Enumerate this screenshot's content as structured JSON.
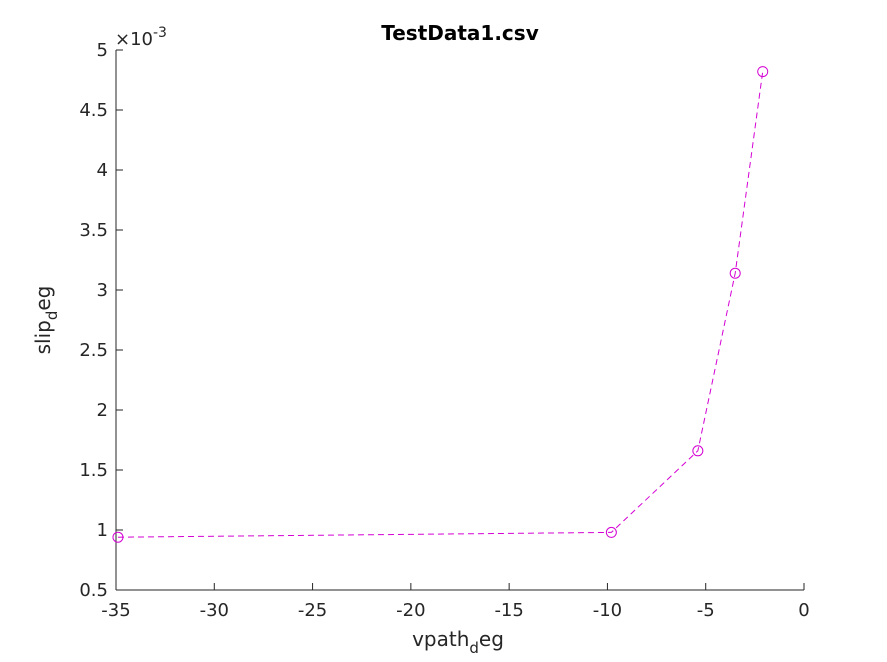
{
  "chart_data": {
    "type": "line",
    "title": "TestData1.csv",
    "xlabel": {
      "main": "vpath",
      "sub": "d",
      "tail": "eg"
    },
    "ylabel": {
      "main": "slip",
      "sub": "d",
      "tail": "eg"
    },
    "xlim": [
      -35,
      0
    ],
    "ylim": [
      0.5,
      5
    ],
    "x_ticks": [
      -35,
      -30,
      -25,
      -20,
      -15,
      -10,
      -5,
      0
    ],
    "x_tick_labels": [
      "-35",
      "-30",
      "-25",
      "-20",
      "-15",
      "-10",
      "-5",
      "0"
    ],
    "y_ticks": [
      0.5,
      1,
      1.5,
      2,
      2.5,
      3,
      3.5,
      4,
      4.5,
      5
    ],
    "y_tick_labels": [
      "0.5",
      "1",
      "1.5",
      "2",
      "2.5",
      "3",
      "3.5",
      "4",
      "4.5",
      "5"
    ],
    "y_exponent": {
      "base": "×10",
      "power": "-3"
    },
    "grid": false,
    "series": [
      {
        "color": "#d400d4",
        "line_style": "dashed",
        "marker": "circle",
        "x": [
          -34.9,
          -9.8,
          -5.4,
          -3.5,
          -2.1
        ],
        "y": [
          0.94,
          0.98,
          1.66,
          3.14,
          4.82
        ]
      }
    ]
  }
}
